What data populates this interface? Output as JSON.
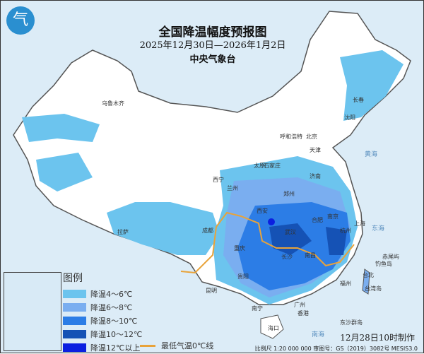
{
  "header": {
    "title": "全国降温幅度预报图",
    "dates": "2025年12月30日—2026年1月2日",
    "agency": "中央气象台",
    "logo_text": "气"
  },
  "legend": {
    "title": "图例",
    "items": [
      {
        "label": "降温4～6℃",
        "color": "#6cc4ee"
      },
      {
        "label": "降温6～8℃",
        "color": "#7aaef0"
      },
      {
        "label": "降温8～10℃",
        "color": "#2c7de6"
      },
      {
        "label": "降温10～12℃",
        "color": "#1552b5"
      },
      {
        "label": "降温12℃以上",
        "color": "#0b1fe0"
      }
    ],
    "zero_line": {
      "label": "最低气温0℃线",
      "color": "#e8a33a"
    }
  },
  "footer": {
    "made": "12月28日10时制作",
    "scale": "比例尺 1:20 000 000  审图号：GS（2019）3082号 MESIS3.0"
  },
  "cities": [
    "乌鲁木齐",
    "呼和浩特",
    "北京",
    "天津",
    "沈阳",
    "长春",
    "太原",
    "石家庄",
    "济南",
    "郑州",
    "西安",
    "兰州",
    "西宁",
    "拉萨",
    "成都",
    "重庆",
    "贵阳",
    "昆明",
    "南宁",
    "广州",
    "香港",
    "海口",
    "长沙",
    "武汉",
    "南昌",
    "合肥",
    "南京",
    "杭州",
    "上海",
    "福州",
    "台北",
    "赤尾屿",
    "钓鱼岛",
    "台湾岛",
    "东沙群岛"
  ],
  "seas": [
    "黄海",
    "东海",
    "南海"
  ]
}
